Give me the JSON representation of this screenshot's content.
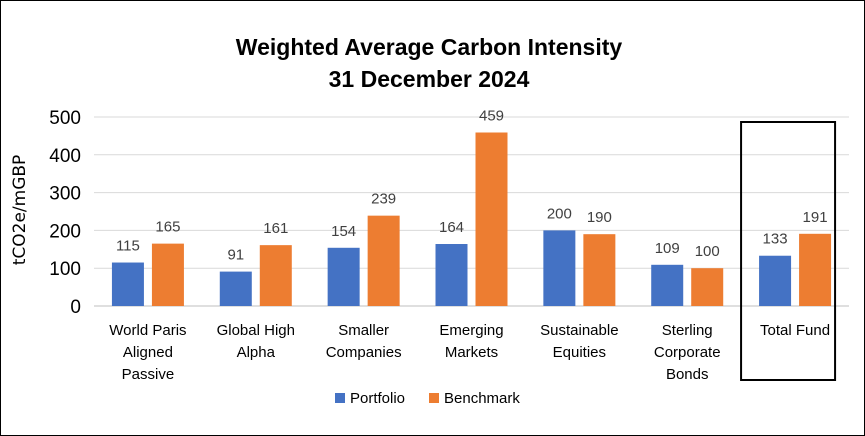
{
  "chart_data": {
    "type": "bar",
    "title": "Weighted Average Carbon Intensity",
    "subtitle": "31 December 2024",
    "ylabel": "tCO2e/mGBP",
    "xlabel": "",
    "ylim": [
      0,
      500
    ],
    "yticks": [
      0,
      100,
      200,
      300,
      400,
      500
    ],
    "grid": true,
    "legend_position": "bottom",
    "categories": [
      [
        "World Paris",
        "Aligned",
        "Passive"
      ],
      [
        "Global High",
        "Alpha"
      ],
      [
        "Smaller",
        "Companies"
      ],
      [
        "Emerging",
        "Markets"
      ],
      [
        "Sustainable",
        "Equities"
      ],
      [
        "Sterling",
        "Corporate",
        "Bonds"
      ],
      [
        "Total Fund"
      ]
    ],
    "series": [
      {
        "name": "Portfolio",
        "color": "#4472C4",
        "values": [
          115,
          91,
          154,
          164,
          200,
          109,
          133
        ]
      },
      {
        "name": "Benchmark",
        "color": "#ED7D31",
        "values": [
          165,
          161,
          239,
          459,
          190,
          100,
          191
        ]
      }
    ],
    "highlighted_category": "Total Fund",
    "gridline_color": "#d9d9d9"
  }
}
